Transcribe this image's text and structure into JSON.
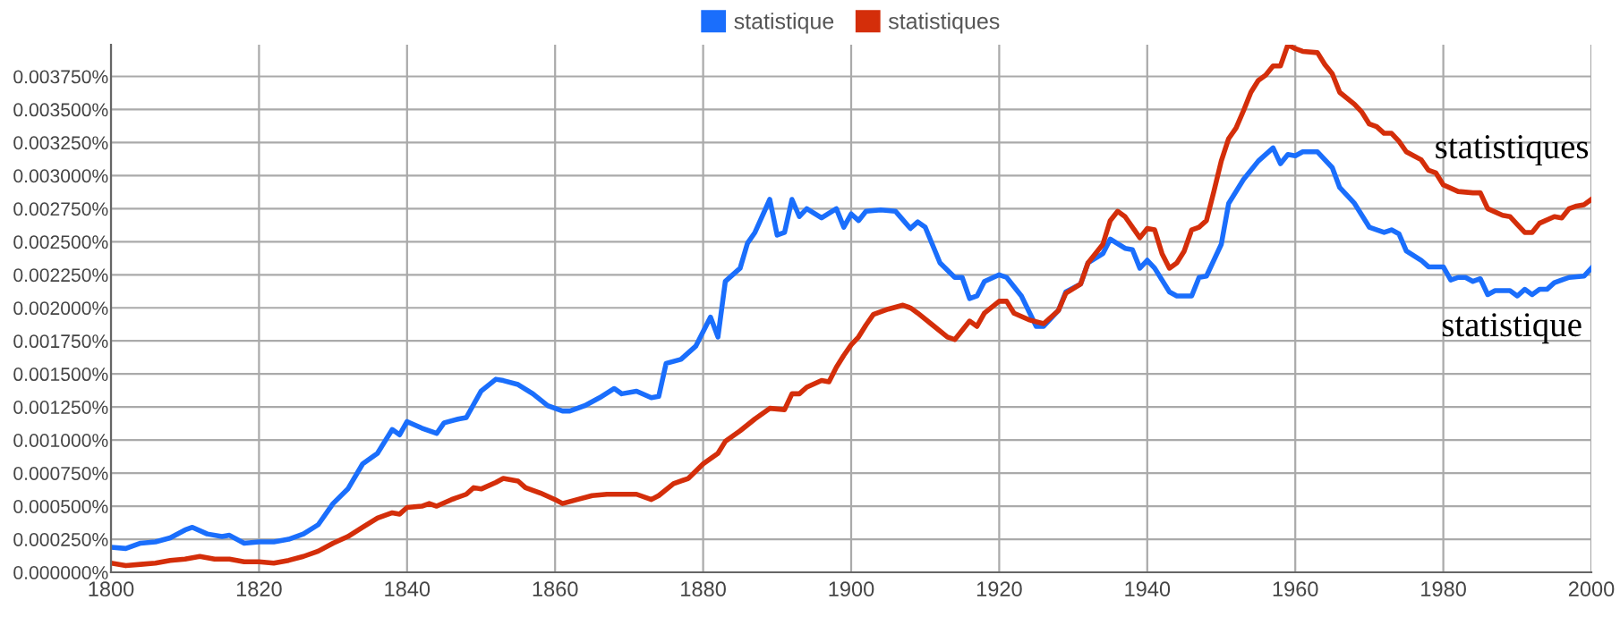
{
  "chart_data": {
    "type": "line",
    "xlim": [
      1800,
      2000
    ],
    "xticks": [
      1800,
      1820,
      1840,
      1860,
      1880,
      1900,
      1920,
      1940,
      1960,
      1980,
      2000
    ],
    "ylim": [
      0,
      0.00399
    ],
    "yticks": [
      {
        "value": 0,
        "label": "0.000000%"
      },
      {
        "value": 0.00025,
        "label": "0.000250%"
      },
      {
        "value": 0.0005,
        "label": "0.000500%"
      },
      {
        "value": 0.00075,
        "label": "0.000750%"
      },
      {
        "value": 0.001,
        "label": "0.001000%"
      },
      {
        "value": 0.00125,
        "label": "0.001250%"
      },
      {
        "value": 0.0015,
        "label": "0.001500%"
      },
      {
        "value": 0.00175,
        "label": "0.001750%"
      },
      {
        "value": 0.002,
        "label": "0.002000%"
      },
      {
        "value": 0.00225,
        "label": "0.002250%"
      },
      {
        "value": 0.0025,
        "label": "0.002500%"
      },
      {
        "value": 0.00275,
        "label": "0.002750%"
      },
      {
        "value": 0.003,
        "label": "0.003000%"
      },
      {
        "value": 0.00325,
        "label": "0.003250%"
      },
      {
        "value": 0.0035,
        "label": "0.003500%"
      },
      {
        "value": 0.00375,
        "label": "0.003750%"
      }
    ],
    "grid": true,
    "legend": "top",
    "marker": "none",
    "line_style": "solid",
    "series": [
      {
        "name": "statistique",
        "color": "#1a6efc",
        "x": [
          1800,
          1802,
          1804,
          1806,
          1808,
          1810,
          1811,
          1813,
          1815,
          1816,
          1818,
          1820,
          1822,
          1824,
          1826,
          1828,
          1830,
          1832,
          1834,
          1836,
          1838,
          1839,
          1840,
          1842,
          1844,
          1845,
          1847,
          1848,
          1850,
          1852,
          1853,
          1855,
          1857,
          1859,
          1861,
          1862,
          1864,
          1866,
          1868,
          1869,
          1871,
          1873,
          1874,
          1875,
          1877,
          1879,
          1881,
          1882,
          1883,
          1885,
          1886,
          1887,
          1889,
          1890,
          1891,
          1892,
          1893,
          1894,
          1896,
          1898,
          1899,
          1900,
          1901,
          1902,
          1904,
          1906,
          1908,
          1909,
          1910,
          1912,
          1914,
          1915,
          1916,
          1917,
          1918,
          1920,
          1921,
          1923,
          1925,
          1926,
          1928,
          1929,
          1931,
          1932,
          1934,
          1935,
          1937,
          1938,
          1939,
          1940,
          1941,
          1943,
          1944,
          1946,
          1947,
          1948,
          1950,
          1951,
          1953,
          1955,
          1957,
          1958,
          1959,
          1960,
          1961,
          1963,
          1965,
          1966,
          1968,
          1970,
          1972,
          1973,
          1974,
          1975,
          1977,
          1978,
          1980,
          1981,
          1982,
          1983,
          1984,
          1985,
          1986,
          1987,
          1989,
          1990,
          1991,
          1992,
          1993,
          1994,
          1995,
          1996,
          1997,
          1999,
          2000
        ],
        "values": [
          0.00019,
          0.00018,
          0.00022,
          0.00023,
          0.00026,
          0.00032,
          0.00034,
          0.00029,
          0.00027,
          0.00028,
          0.00022,
          0.00023,
          0.00023,
          0.00025,
          0.00029,
          0.00036,
          0.00052,
          0.00063,
          0.00082,
          0.0009,
          0.00108,
          0.00104,
          0.00114,
          0.00109,
          0.00105,
          0.00113,
          0.00116,
          0.00117,
          0.00137,
          0.00146,
          0.00145,
          0.00142,
          0.00135,
          0.00126,
          0.00122,
          0.00122,
          0.00126,
          0.00132,
          0.00139,
          0.00135,
          0.00137,
          0.00132,
          0.00133,
          0.00158,
          0.00161,
          0.00171,
          0.00193,
          0.00178,
          0.0022,
          0.0023,
          0.00249,
          0.00257,
          0.00282,
          0.00255,
          0.00257,
          0.00282,
          0.00269,
          0.00275,
          0.00268,
          0.00275,
          0.00261,
          0.00271,
          0.00266,
          0.00273,
          0.00274,
          0.00273,
          0.0026,
          0.00265,
          0.00261,
          0.00234,
          0.00223,
          0.00223,
          0.00207,
          0.00209,
          0.0022,
          0.00225,
          0.00223,
          0.00209,
          0.00186,
          0.00186,
          0.00198,
          0.00212,
          0.00218,
          0.00234,
          0.00241,
          0.00252,
          0.00245,
          0.00244,
          0.0023,
          0.00236,
          0.0023,
          0.00212,
          0.00209,
          0.00209,
          0.00223,
          0.00224,
          0.00248,
          0.00279,
          0.00297,
          0.00311,
          0.00321,
          0.00309,
          0.00316,
          0.00315,
          0.00318,
          0.00318,
          0.00306,
          0.00291,
          0.00279,
          0.00261,
          0.00257,
          0.00259,
          0.00256,
          0.00243,
          0.00236,
          0.00231,
          0.00231,
          0.00221,
          0.00223,
          0.00223,
          0.0022,
          0.00222,
          0.0021,
          0.00213,
          0.00213,
          0.00209,
          0.00214,
          0.0021,
          0.00214,
          0.00214,
          0.00219,
          0.00221,
          0.00223,
          0.00224,
          0.0023
        ]
      },
      {
        "name": "statistiques",
        "color": "#d42e0a",
        "x": [
          1800,
          1802,
          1804,
          1806,
          1808,
          1810,
          1812,
          1814,
          1816,
          1818,
          1820,
          1822,
          1824,
          1826,
          1828,
          1830,
          1832,
          1834,
          1836,
          1838,
          1839,
          1840,
          1842,
          1843,
          1844,
          1846,
          1848,
          1849,
          1850,
          1852,
          1853,
          1855,
          1856,
          1858,
          1860,
          1861,
          1863,
          1865,
          1867,
          1869,
          1871,
          1873,
          1874,
          1876,
          1878,
          1880,
          1882,
          1883,
          1885,
          1887,
          1889,
          1891,
          1892,
          1893,
          1894,
          1896,
          1897,
          1898,
          1899,
          1900,
          1901,
          1902,
          1903,
          1905,
          1907,
          1908,
          1909,
          1911,
          1913,
          1914,
          1916,
          1917,
          1918,
          1920,
          1921,
          1922,
          1924,
          1926,
          1928,
          1929,
          1931,
          1932,
          1934,
          1935,
          1936,
          1937,
          1939,
          1940,
          1941,
          1942,
          1943,
          1944,
          1945,
          1946,
          1947,
          1948,
          1949,
          1950,
          1951,
          1952,
          1953,
          1954,
          1955,
          1956,
          1957,
          1958,
          1959,
          1960,
          1961,
          1963,
          1964,
          1965,
          1966,
          1968,
          1969,
          1970,
          1971,
          1972,
          1973,
          1974,
          1975,
          1977,
          1978,
          1979,
          1980,
          1982,
          1984,
          1985,
          1986,
          1988,
          1989,
          1990,
          1991,
          1992,
          1993,
          1995,
          1996,
          1997,
          1998,
          1999,
          2000
        ],
        "values": [
          7e-05,
          5e-05,
          6e-05,
          7e-05,
          9e-05,
          0.0001,
          0.00012,
          0.0001,
          0.0001,
          8e-05,
          8e-05,
          7e-05,
          9e-05,
          0.00012,
          0.00016,
          0.00022,
          0.00027,
          0.00034,
          0.00041,
          0.00045,
          0.00044,
          0.00049,
          0.0005,
          0.00052,
          0.0005,
          0.00055,
          0.00059,
          0.00064,
          0.00063,
          0.00068,
          0.00071,
          0.00069,
          0.00064,
          0.0006,
          0.00055,
          0.00052,
          0.00055,
          0.00058,
          0.00059,
          0.00059,
          0.00059,
          0.00055,
          0.00058,
          0.00067,
          0.00071,
          0.00082,
          0.0009,
          0.00099,
          0.00107,
          0.00116,
          0.00124,
          0.00123,
          0.00135,
          0.00135,
          0.0014,
          0.00145,
          0.00144,
          0.00155,
          0.00164,
          0.00172,
          0.00178,
          0.00187,
          0.00195,
          0.00199,
          0.00202,
          0.002,
          0.00196,
          0.00187,
          0.00178,
          0.00176,
          0.0019,
          0.00186,
          0.00196,
          0.00205,
          0.00205,
          0.00196,
          0.00191,
          0.00188,
          0.00198,
          0.00211,
          0.00218,
          0.00234,
          0.00248,
          0.00266,
          0.00273,
          0.00269,
          0.00253,
          0.0026,
          0.00259,
          0.00241,
          0.0023,
          0.00234,
          0.00243,
          0.00259,
          0.00261,
          0.00266,
          0.00288,
          0.00311,
          0.00328,
          0.00336,
          0.00349,
          0.00363,
          0.00372,
          0.00376,
          0.00383,
          0.00383,
          0.00399,
          0.00396,
          0.00394,
          0.00393,
          0.00384,
          0.00377,
          0.00363,
          0.00354,
          0.00348,
          0.00339,
          0.00337,
          0.00332,
          0.00332,
          0.00326,
          0.00318,
          0.00312,
          0.00304,
          0.00302,
          0.00293,
          0.00288,
          0.00287,
          0.00287,
          0.00275,
          0.0027,
          0.00269,
          0.00263,
          0.00257,
          0.00257,
          0.00264,
          0.00269,
          0.00268,
          0.00275,
          0.00277,
          0.00278,
          0.00282
        ]
      }
    ]
  }
}
